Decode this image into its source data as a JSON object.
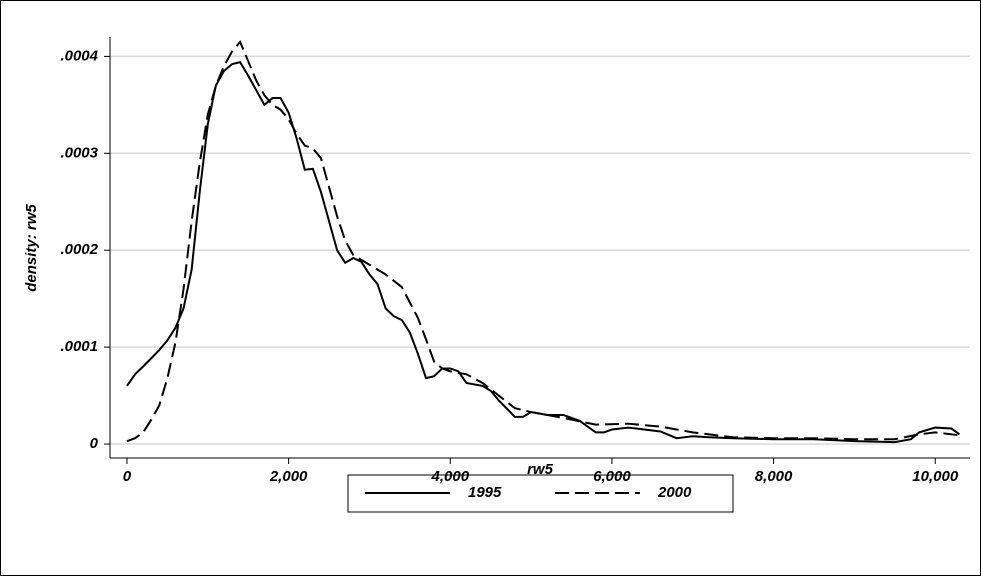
{
  "chart_data": {
    "type": "line",
    "xlabel": "rw5",
    "ylabel": "density: rw5",
    "xlim": [
      -210,
      10430
    ],
    "ylim": [
      -1.44e-05,
      0.00042
    ],
    "xticks": [
      0,
      {
        "value": 2000,
        "label": "2,000"
      },
      {
        "value": 4000,
        "label": "4,000"
      },
      {
        "value": 6000,
        "label": "6,000"
      },
      {
        "value": 8000,
        "label": "8,000"
      },
      {
        "value": 10000,
        "label": "10,000"
      }
    ],
    "yticks": [
      0,
      {
        "value": 0.0001,
        "label": ".0001"
      },
      {
        "value": 0.0002,
        "label": ".0002"
      },
      {
        "value": 0.0003,
        "label": ".0003"
      },
      {
        "value": 0.0004,
        "label": ".0004"
      }
    ],
    "grid": true,
    "legend": "bottom",
    "series": [
      {
        "name": "1995",
        "color": "#000000",
        "line_style": "solid",
        "x": [
          0,
          100,
          200,
          400,
          500,
          600,
          700,
          800,
          900,
          1000,
          1100,
          1200,
          1300,
          1400,
          1500,
          1600,
          1700,
          1800,
          1900,
          2000,
          2100,
          2200,
          2300,
          2400,
          2500,
          2600,
          2700,
          2800,
          2900,
          3000,
          3100,
          3200,
          3300,
          3400,
          3500,
          3600,
          3700,
          3800,
          3900,
          4000,
          4100,
          4200,
          4400,
          4500,
          4600,
          4800,
          4900,
          5000,
          5200,
          5400,
          5600,
          5800,
          5900,
          6000,
          6200,
          6400,
          6600,
          6800,
          7000,
          7200,
          7500,
          8000,
          8500,
          9000,
          9500,
          9700,
          9800,
          10000,
          10200,
          10300
        ],
        "values": [
          6e-05,
          7.2e-05,
          8e-05,
          9.7e-05,
          0.000107,
          0.00012,
          0.00014,
          0.00018,
          0.00026,
          0.00033,
          0.00037,
          0.000385,
          0.000392,
          0.000394,
          0.00038,
          0.000365,
          0.00035,
          0.000357,
          0.000357,
          0.000342,
          0.000315,
          0.000283,
          0.000284,
          0.00026,
          0.00023,
          0.0002,
          0.000187,
          0.000192,
          0.000188,
          0.000175,
          0.000165,
          0.00014,
          0.000132,
          0.000128,
          0.000115,
          9.3e-05,
          6.8e-05,
          7e-05,
          7.8e-05,
          7.8e-05,
          7.5e-05,
          6.3e-05,
          6e-05,
          5.5e-05,
          4.5e-05,
          2.8e-05,
          2.8e-05,
          3.3e-05,
          3e-05,
          3e-05,
          2.4e-05,
          1.2e-05,
          1.2e-05,
          1.5e-05,
          1.7e-05,
          1.5e-05,
          1.3e-05,
          6e-06,
          8e-06,
          7e-06,
          6e-06,
          5e-06,
          5e-06,
          3e-06,
          2e-06,
          5e-06,
          1.2e-05,
          1.7e-05,
          1.6e-05,
          1e-05
        ]
      },
      {
        "name": "2000",
        "color": "#000000",
        "line_style": "dash",
        "x": [
          0,
          100,
          200,
          300,
          400,
          500,
          600,
          700,
          800,
          900,
          1000,
          1100,
          1200,
          1300,
          1400,
          1500,
          1600,
          1700,
          1800,
          1900,
          2000,
          2100,
          2200,
          2300,
          2400,
          2500,
          2600,
          2700,
          2800,
          2900,
          3000,
          3200,
          3400,
          3600,
          3700,
          3800,
          3900,
          4000,
          4200,
          4400,
          4600,
          4800,
          5000,
          5400,
          5800,
          6200,
          6600,
          7000,
          7500,
          8000,
          8500,
          9000,
          9500,
          9800,
          10000,
          10300
        ],
        "values": [
          3e-06,
          6e-06,
          1.2e-05,
          2.5e-05,
          4e-05,
          6.8e-05,
          0.000105,
          0.00016,
          0.00023,
          0.00029,
          0.00034,
          0.00037,
          0.00039,
          0.000405,
          0.000415,
          0.000395,
          0.000375,
          0.00036,
          0.00035,
          0.000345,
          0.000335,
          0.00032,
          0.000308,
          0.000305,
          0.000295,
          0.000265,
          0.000235,
          0.00021,
          0.000195,
          0.00019,
          0.000185,
          0.000175,
          0.000162,
          0.00013,
          0.000108,
          8.5e-05,
          7.8e-05,
          7.5e-05,
          7.2e-05,
          6.3e-05,
          5e-05,
          3.7e-05,
          3.3e-05,
          2.7e-05,
          2e-05,
          2.1e-05,
          1.8e-05,
          1.2e-05,
          7e-06,
          6e-06,
          6e-06,
          5e-06,
          5e-06,
          1e-05,
          1.2e-05,
          9e-06
        ]
      }
    ]
  }
}
